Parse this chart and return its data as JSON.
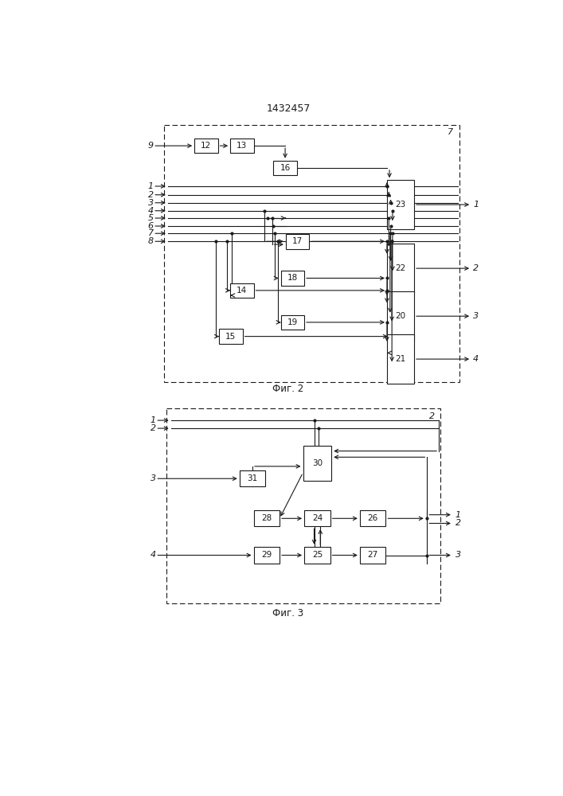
{
  "title": "1432457",
  "fig1_label": "7",
  "fig1_caption": "Фиг. 2",
  "fig2_label": "2",
  "fig2_caption": "Фиг. 3",
  "bg": "#ffffff",
  "lc": "#1a1a1a",
  "fc": "#ffffff"
}
